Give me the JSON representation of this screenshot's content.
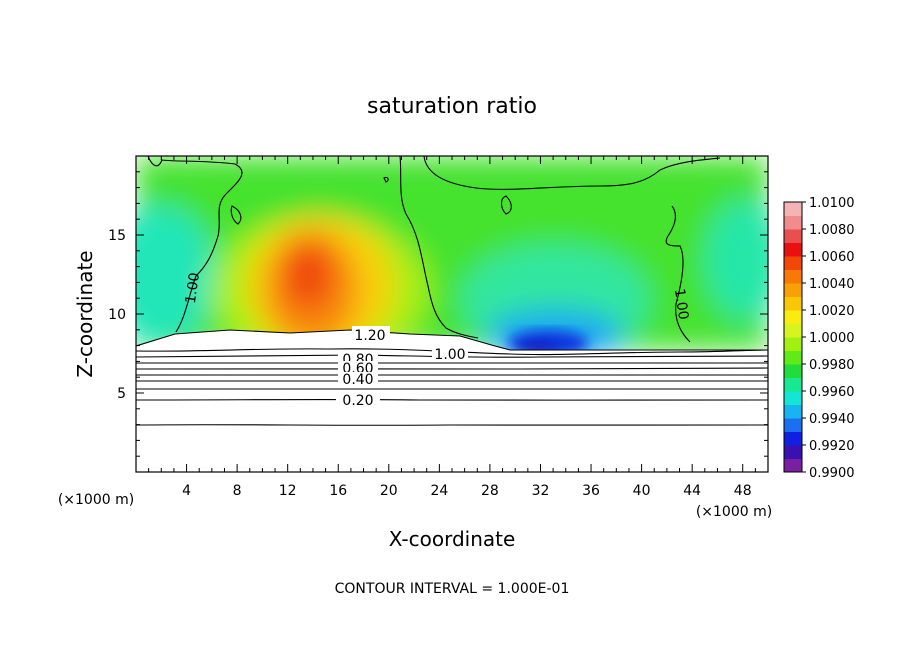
{
  "chart_data": {
    "type": "heatmap",
    "title": "saturation ratio",
    "xlabel": "X-coordinate",
    "ylabel": "Z-coordinate",
    "x_unit_left": "(×1000 m)",
    "x_unit_right": "(×1000 m)",
    "xlim": [
      0,
      50
    ],
    "ylim": [
      0,
      20
    ],
    "x_ticks": [
      4,
      8,
      12,
      16,
      20,
      24,
      28,
      32,
      36,
      40,
      44,
      48
    ],
    "x_tick_labels": [
      "4",
      "8",
      "12",
      "16",
      "20",
      "24",
      "28",
      "32",
      "36",
      "40",
      "44",
      "48"
    ],
    "y_ticks": [
      5,
      10,
      15
    ],
    "y_tick_labels": [
      "5",
      "10",
      "15"
    ],
    "colorbar": {
      "min": 0.99,
      "max": 1.01,
      "step": 0.001,
      "tick_labels": [
        "1.0100",
        "1.0080",
        "1.0060",
        "1.0040",
        "1.0020",
        "1.0000",
        "0.9980",
        "0.9960",
        "0.9940",
        "0.9920",
        "0.9900"
      ],
      "colors": [
        "#7a1fa2",
        "#3b10b0",
        "#1020e0",
        "#1a70f0",
        "#18b4f0",
        "#14e6d4",
        "#18e890",
        "#22dc3c",
        "#60ea18",
        "#a0f010",
        "#d8f420",
        "#f8ec10",
        "#f8c808",
        "#f8a008",
        "#f87808",
        "#f04808",
        "#e81010",
        "#e85050",
        "#f08c8c",
        "#f4b4b4"
      ]
    },
    "contour_labels": [
      "1.00",
      "1.00",
      "1.20",
      "1.00",
      "0.80",
      "0.60",
      "0.40",
      "0.20"
    ],
    "contour_interval_note": "CONTOUR INTERVAL = 1.000E-01"
  }
}
